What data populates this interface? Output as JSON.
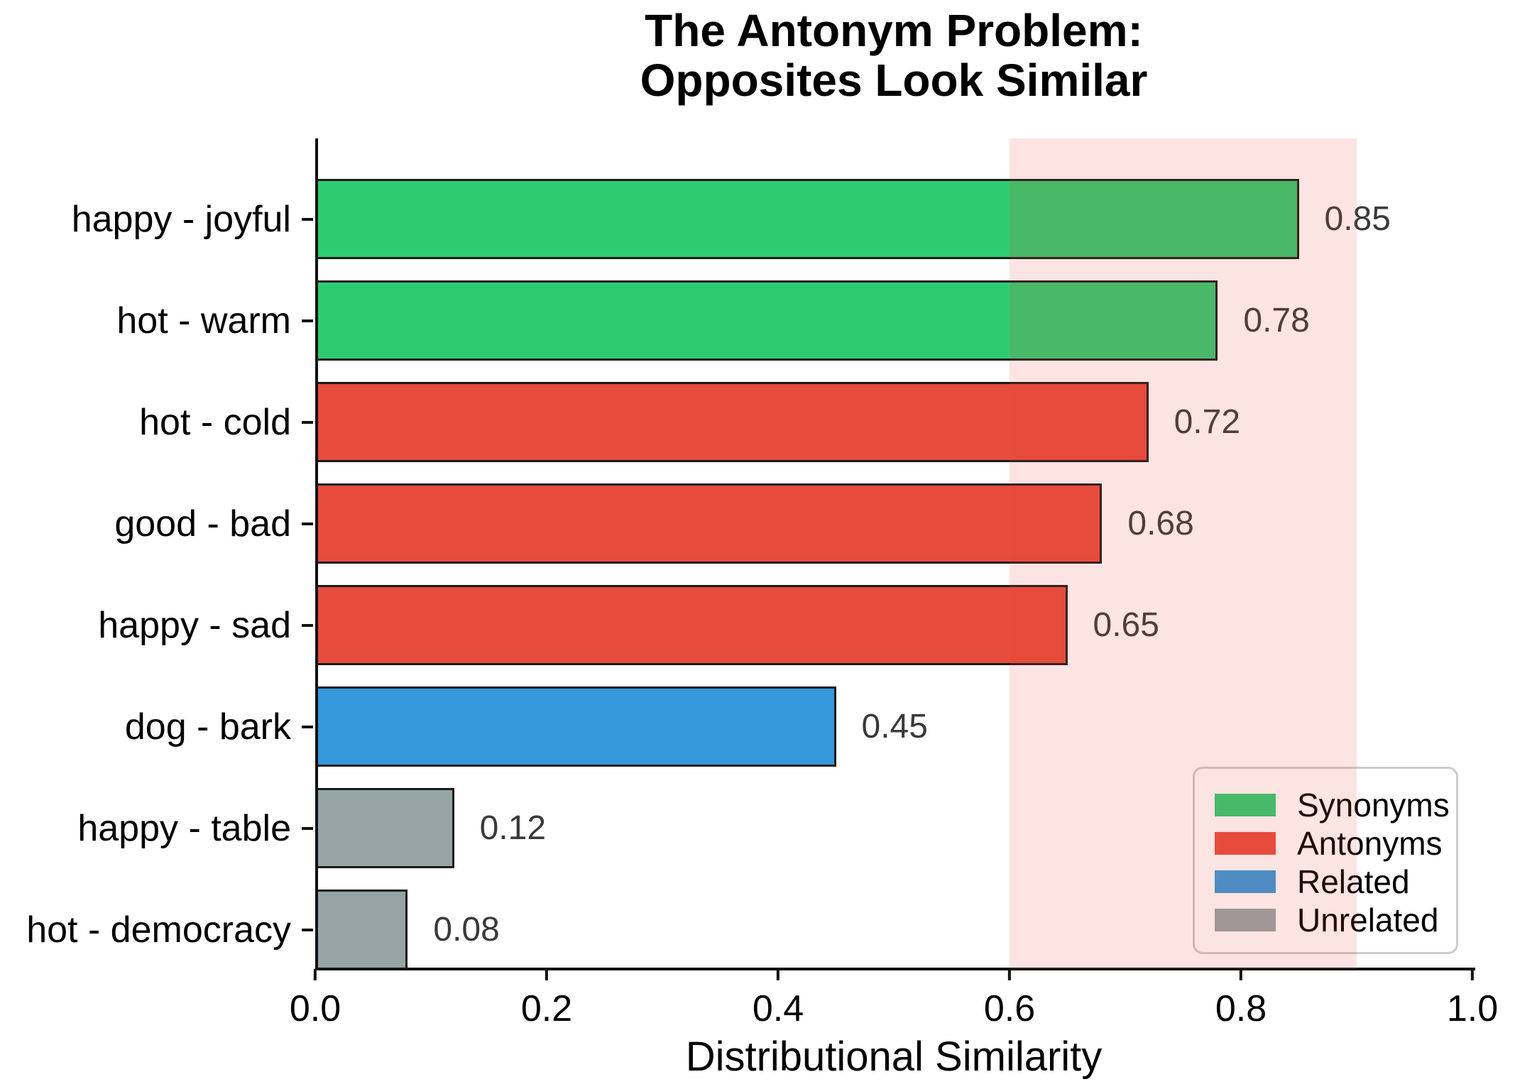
{
  "chart_data": {
    "type": "bar",
    "orientation": "horizontal",
    "title": "The Antonym Problem: Opposites Look Similar",
    "title_lines": "The Antonym Problem:\nOpposites Look Similar",
    "xlabel": "Distributional Similarity",
    "ylabel": "",
    "xlim": [
      0.0,
      1.0
    ],
    "grid": false,
    "categories": [
      "happy - joyful",
      "hot - warm",
      "hot - cold",
      "good - bad",
      "happy - sad",
      "dog - bark",
      "happy - table",
      "hot - democracy"
    ],
    "values": [
      0.85,
      0.78,
      0.72,
      0.68,
      0.65,
      0.45,
      0.12,
      0.08
    ],
    "rows": [
      {
        "label": "happy - joyful",
        "value": 0.85,
        "value_label": "0.85",
        "group": "Synonyms",
        "color": "#2ecc71"
      },
      {
        "label": "hot - warm",
        "value": 0.78,
        "value_label": "0.78",
        "group": "Synonyms",
        "color": "#2ecc71"
      },
      {
        "label": "hot - cold",
        "value": 0.72,
        "value_label": "0.72",
        "group": "Antonyms",
        "color": "#e74c3c"
      },
      {
        "label": "good - bad",
        "value": 0.68,
        "value_label": "0.68",
        "group": "Antonyms",
        "color": "#e74c3c"
      },
      {
        "label": "happy - sad",
        "value": 0.65,
        "value_label": "0.65",
        "group": "Antonyms",
        "color": "#e74c3c"
      },
      {
        "label": "dog - bark",
        "value": 0.45,
        "value_label": "0.45",
        "group": "Related",
        "color": "#3498db"
      },
      {
        "label": "happy - table",
        "value": 0.12,
        "value_label": "0.12",
        "group": "Unrelated",
        "color": "#95a5a6"
      },
      {
        "label": "hot - democracy",
        "value": 0.08,
        "value_label": "0.08",
        "group": "Unrelated",
        "color": "#95a5a6"
      }
    ],
    "xticks": [
      {
        "value": 0.0,
        "label": "0.0"
      },
      {
        "value": 0.2,
        "label": "0.2"
      },
      {
        "value": 0.4,
        "label": "0.4"
      },
      {
        "value": 0.6,
        "label": "0.6"
      },
      {
        "value": 0.8,
        "label": "0.8"
      },
      {
        "value": 1.0,
        "label": "1.0"
      }
    ],
    "highlight_span": {
      "from": 0.6,
      "to": 0.9,
      "color": "#e74c3c",
      "opacity": 0.15
    },
    "legend": {
      "position": "lower right",
      "entries": [
        {
          "label": "Synonyms",
          "color": "#2ecc71"
        },
        {
          "label": "Antonyms",
          "color": "#e74c3c"
        },
        {
          "label": "Related",
          "color": "#3498db"
        },
        {
          "label": "Unrelated",
          "color": "#95a5a6"
        }
      ]
    },
    "colors": {
      "bar_edge": "#1a1a1a",
      "value_label": "#3a3a3a",
      "axis": "#111111",
      "legend_border": "#cccccc"
    }
  }
}
